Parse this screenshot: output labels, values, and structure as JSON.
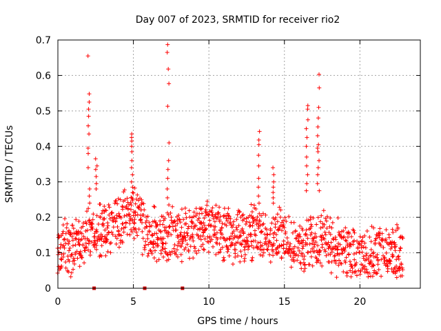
{
  "chart_data": {
    "type": "scatter",
    "title": "Day 007 of 2023, SRMTID for receiver rio2",
    "xlabel": "GPS time / hours",
    "ylabel": "SRMTID / TECUs",
    "xlim": [
      0,
      24
    ],
    "ylim": [
      0,
      0.7
    ],
    "xticks": [
      0,
      5,
      10,
      15,
      20
    ],
    "yticks": [
      0,
      0.1,
      0.2,
      0.3,
      0.4,
      0.5,
      0.6,
      0.7
    ],
    "xtick_labels": [
      "0",
      "5",
      "10",
      "15",
      "20"
    ],
    "ytick_labels": [
      "0",
      "0.1",
      "0.2",
      "0.3",
      "0.4",
      "0.5",
      "0.6",
      "0.7"
    ],
    "grid": true,
    "marker": "+",
    "series_color": "#ff0000",
    "gap_marker_color": "#cc0000",
    "gap_markers_x": [
      2.4,
      5.75,
      8.25
    ],
    "baseline": {
      "start": 0,
      "end": 22.9,
      "step": 0.05,
      "knots": [
        [
          0,
          0.11
        ],
        [
          1,
          0.12
        ],
        [
          2,
          0.15
        ],
        [
          3,
          0.17
        ],
        [
          4,
          0.18
        ],
        [
          5,
          0.22
        ],
        [
          6,
          0.15
        ],
        [
          7,
          0.14
        ],
        [
          8,
          0.16
        ],
        [
          9,
          0.17
        ],
        [
          10,
          0.17
        ],
        [
          11,
          0.16
        ],
        [
          12,
          0.15
        ],
        [
          13,
          0.16
        ],
        [
          14,
          0.14
        ],
        [
          15,
          0.15
        ],
        [
          16,
          0.12
        ],
        [
          17,
          0.14
        ],
        [
          18,
          0.13
        ],
        [
          19,
          0.1
        ],
        [
          20,
          0.09
        ],
        [
          21,
          0.1
        ],
        [
          22,
          0.1
        ],
        [
          22.9,
          0.1
        ]
      ],
      "spread": 0.13
    },
    "bursts": [
      {
        "x": 2.05,
        "values": [
          0.655,
          0.548,
          0.525,
          0.505,
          0.485,
          0.458,
          0.435,
          0.395,
          0.38,
          0.34,
          0.28,
          0.26,
          0.225
        ]
      },
      {
        "x": 2.55,
        "values": [
          0.365,
          0.345,
          0.335,
          0.315,
          0.295,
          0.28
        ]
      },
      {
        "x": 4.9,
        "values": [
          0.435,
          0.425,
          0.415,
          0.4,
          0.385,
          0.36,
          0.34,
          0.32,
          0.3,
          0.285,
          0.27,
          0.255
        ]
      },
      {
        "x": 7.3,
        "values": [
          0.687,
          0.665,
          0.618,
          0.577,
          0.513,
          0.41,
          0.36,
          0.335,
          0.31,
          0.28,
          0.255,
          0.235
        ]
      },
      {
        "x": 13.3,
        "values": [
          0.442,
          0.418,
          0.405,
          0.375,
          0.345,
          0.31,
          0.285,
          0.26,
          0.24
        ]
      },
      {
        "x": 14.25,
        "values": [
          0.34,
          0.32,
          0.3,
          0.285,
          0.27,
          0.255,
          0.24
        ]
      },
      {
        "x": 16.5,
        "values": [
          0.515,
          0.505,
          0.475,
          0.45,
          0.425,
          0.4,
          0.37,
          0.345,
          0.32,
          0.295,
          0.275
        ]
      },
      {
        "x": 17.25,
        "values": [
          0.603,
          0.565,
          0.51,
          0.48,
          0.455,
          0.43,
          0.405,
          0.395,
          0.385,
          0.36,
          0.34,
          0.32,
          0.295,
          0.275
        ]
      }
    ]
  }
}
